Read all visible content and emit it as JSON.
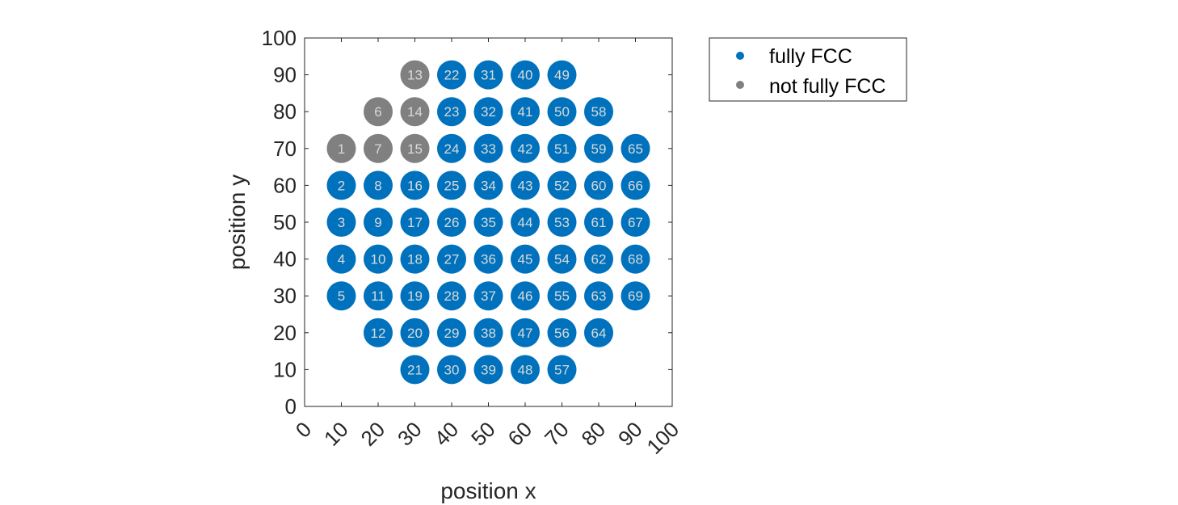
{
  "chart_data": {
    "type": "scatter",
    "xlabel": "position x",
    "ylabel": "position y",
    "xlim": [
      0,
      100
    ],
    "ylim": [
      0,
      100
    ],
    "xticks": [
      "0",
      "10",
      "20",
      "30",
      "40",
      "50",
      "60",
      "70",
      "80",
      "90",
      "100"
    ],
    "yticks": [
      "0",
      "10",
      "20",
      "30",
      "40",
      "50",
      "60",
      "70",
      "80",
      "90",
      "100"
    ],
    "grid": false,
    "legend_position": "outside-right-top",
    "colors": {
      "fully_fcc": "#0072BD",
      "not_fully_fcc": "#808080",
      "label": "#d9d9d9"
    },
    "series": [
      {
        "name": "fully FCC",
        "points": [
          {
            "x": 10,
            "y": 60,
            "label": "2"
          },
          {
            "x": 10,
            "y": 50,
            "label": "3"
          },
          {
            "x": 10,
            "y": 40,
            "label": "4"
          },
          {
            "x": 10,
            "y": 30,
            "label": "5"
          },
          {
            "x": 20,
            "y": 60,
            "label": "8"
          },
          {
            "x": 20,
            "y": 50,
            "label": "9"
          },
          {
            "x": 20,
            "y": 40,
            "label": "10"
          },
          {
            "x": 20,
            "y": 30,
            "label": "11"
          },
          {
            "x": 20,
            "y": 20,
            "label": "12"
          },
          {
            "x": 30,
            "y": 60,
            "label": "16"
          },
          {
            "x": 30,
            "y": 50,
            "label": "17"
          },
          {
            "x": 30,
            "y": 40,
            "label": "18"
          },
          {
            "x": 30,
            "y": 30,
            "label": "19"
          },
          {
            "x": 30,
            "y": 20,
            "label": "20"
          },
          {
            "x": 30,
            "y": 10,
            "label": "21"
          },
          {
            "x": 40,
            "y": 90,
            "label": "22"
          },
          {
            "x": 40,
            "y": 80,
            "label": "23"
          },
          {
            "x": 40,
            "y": 70,
            "label": "24"
          },
          {
            "x": 40,
            "y": 60,
            "label": "25"
          },
          {
            "x": 40,
            "y": 50,
            "label": "26"
          },
          {
            "x": 40,
            "y": 40,
            "label": "27"
          },
          {
            "x": 40,
            "y": 30,
            "label": "28"
          },
          {
            "x": 40,
            "y": 20,
            "label": "29"
          },
          {
            "x": 40,
            "y": 10,
            "label": "30"
          },
          {
            "x": 50,
            "y": 90,
            "label": "31"
          },
          {
            "x": 50,
            "y": 80,
            "label": "32"
          },
          {
            "x": 50,
            "y": 70,
            "label": "33"
          },
          {
            "x": 50,
            "y": 60,
            "label": "34"
          },
          {
            "x": 50,
            "y": 50,
            "label": "35"
          },
          {
            "x": 50,
            "y": 40,
            "label": "36"
          },
          {
            "x": 50,
            "y": 30,
            "label": "37"
          },
          {
            "x": 50,
            "y": 20,
            "label": "38"
          },
          {
            "x": 50,
            "y": 10,
            "label": "39"
          },
          {
            "x": 60,
            "y": 90,
            "label": "40"
          },
          {
            "x": 60,
            "y": 80,
            "label": "41"
          },
          {
            "x": 60,
            "y": 70,
            "label": "42"
          },
          {
            "x": 60,
            "y": 60,
            "label": "43"
          },
          {
            "x": 60,
            "y": 50,
            "label": "44"
          },
          {
            "x": 60,
            "y": 40,
            "label": "45"
          },
          {
            "x": 60,
            "y": 30,
            "label": "46"
          },
          {
            "x": 60,
            "y": 20,
            "label": "47"
          },
          {
            "x": 60,
            "y": 10,
            "label": "48"
          },
          {
            "x": 70,
            "y": 90,
            "label": "49"
          },
          {
            "x": 70,
            "y": 80,
            "label": "50"
          },
          {
            "x": 70,
            "y": 70,
            "label": "51"
          },
          {
            "x": 70,
            "y": 60,
            "label": "52"
          },
          {
            "x": 70,
            "y": 50,
            "label": "53"
          },
          {
            "x": 70,
            "y": 40,
            "label": "54"
          },
          {
            "x": 70,
            "y": 30,
            "label": "55"
          },
          {
            "x": 70,
            "y": 20,
            "label": "56"
          },
          {
            "x": 70,
            "y": 10,
            "label": "57"
          },
          {
            "x": 80,
            "y": 80,
            "label": "58"
          },
          {
            "x": 80,
            "y": 70,
            "label": "59"
          },
          {
            "x": 80,
            "y": 60,
            "label": "60"
          },
          {
            "x": 80,
            "y": 50,
            "label": "61"
          },
          {
            "x": 80,
            "y": 40,
            "label": "62"
          },
          {
            "x": 80,
            "y": 30,
            "label": "63"
          },
          {
            "x": 80,
            "y": 20,
            "label": "64"
          },
          {
            "x": 90,
            "y": 70,
            "label": "65"
          },
          {
            "x": 90,
            "y": 60,
            "label": "66"
          },
          {
            "x": 90,
            "y": 50,
            "label": "67"
          },
          {
            "x": 90,
            "y": 40,
            "label": "68"
          },
          {
            "x": 90,
            "y": 30,
            "label": "69"
          }
        ]
      },
      {
        "name": "not fully FCC",
        "points": [
          {
            "x": 10,
            "y": 70,
            "label": "1"
          },
          {
            "x": 20,
            "y": 80,
            "label": "6"
          },
          {
            "x": 20,
            "y": 70,
            "label": "7"
          },
          {
            "x": 30,
            "y": 90,
            "label": "13"
          },
          {
            "x": 30,
            "y": 80,
            "label": "14"
          },
          {
            "x": 30,
            "y": 70,
            "label": "15"
          }
        ]
      }
    ]
  }
}
